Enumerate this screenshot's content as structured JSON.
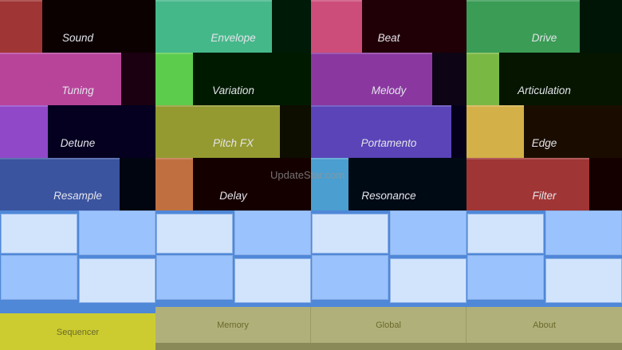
{
  "parameters": [
    {
      "label": "Sound",
      "color": "#a03535",
      "bg": "#0c0101",
      "level": 0.27
    },
    {
      "label": "Envelope",
      "color": "#45b88a",
      "bg": "#001a08",
      "level": 0.75
    },
    {
      "label": "Beat",
      "color": "#cc4d7a",
      "bg": "#200006",
      "level": 0.33
    },
    {
      "label": "Drive",
      "color": "#3a9c55",
      "bg": "#001505",
      "level": 0.73
    },
    {
      "label": "Tuning",
      "color": "#b8449a",
      "bg": "#1a0010",
      "level": 0.78
    },
    {
      "label": "Variation",
      "color": "#5ccc4d",
      "bg": "#001a00",
      "level": 0.24
    },
    {
      "label": "Melody",
      "color": "#8a38a0",
      "bg": "#0d0515",
      "level": 0.78
    },
    {
      "label": "Articulation",
      "color": "#7ab844",
      "bg": "#051500",
      "level": 0.21
    },
    {
      "label": "Detune",
      "color": "#9048c8",
      "bg": "#050020",
      "level": 0.31
    },
    {
      "label": "Pitch FX",
      "color": "#949a30",
      "bg": "#0d0d00",
      "level": 0.8
    },
    {
      "label": "Portamento",
      "color": "#5a44b8",
      "bg": "#05001a",
      "level": 0.9
    },
    {
      "label": "Edge",
      "color": "#d4b048",
      "bg": "#1a0d00",
      "level": 0.37
    },
    {
      "label": "Resample",
      "color": "#3a54a0",
      "bg": "#000510",
      "level": 0.77
    },
    {
      "label": "Delay",
      "color": "#c07040",
      "bg": "#150000",
      "level": 0.24
    },
    {
      "label": "Resonance",
      "color": "#4a9ed0",
      "bg": "#000a15",
      "level": 0.24
    },
    {
      "label": "Filter",
      "color": "#a03535",
      "bg": "#150000",
      "level": 0.79
    }
  ],
  "sequencer_pads": {
    "columns": 8,
    "rows": 2,
    "light_color": "#d2e4fc",
    "medium_color": "#9ac2fc"
  },
  "nav": {
    "sequencer": "Sequencer",
    "memory": "Memory",
    "global": "Global",
    "about": "About",
    "active": "Sequencer",
    "active_color": "#cccc30",
    "inactive_color": "#b0b07a"
  },
  "watermark": "UpdateStar.com"
}
